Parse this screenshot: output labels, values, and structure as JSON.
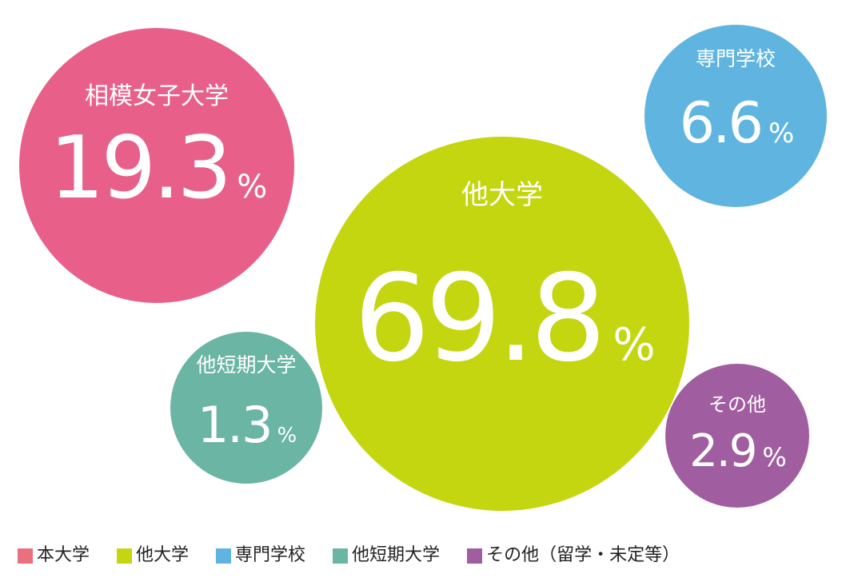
{
  "chart_data": {
    "type": "bubble",
    "unit": "%",
    "series": [
      {
        "key": "honsha",
        "label": "相模女子大学",
        "value": 19.3,
        "display": "19.3",
        "color": "#e8608a"
      },
      {
        "key": "other_univ",
        "label": "他大学",
        "value": 69.8,
        "display": "69.8",
        "color": "#c3d60f"
      },
      {
        "key": "vocational",
        "label": "専門学校",
        "value": 6.6,
        "display": "6.6",
        "color": "#5fb5e0"
      },
      {
        "key": "junior",
        "label": "他短期大学",
        "value": 1.3,
        "display": "1.3",
        "color": "#6bb5a5"
      },
      {
        "key": "others",
        "label": "その他",
        "value": 2.9,
        "display": "2.9",
        "color": "#a05ea0"
      }
    ],
    "legend": [
      {
        "label": "本大学",
        "color": "#e9707f"
      },
      {
        "label": "他大学",
        "color": "#c3d60f"
      },
      {
        "label": "専門学校",
        "color": "#5fb5e0"
      },
      {
        "label": "他短期大学",
        "color": "#6bb5a5"
      },
      {
        "label": "その他（留学・未定等）",
        "color": "#a05ea0"
      }
    ],
    "legend_position": "bottom-left"
  }
}
